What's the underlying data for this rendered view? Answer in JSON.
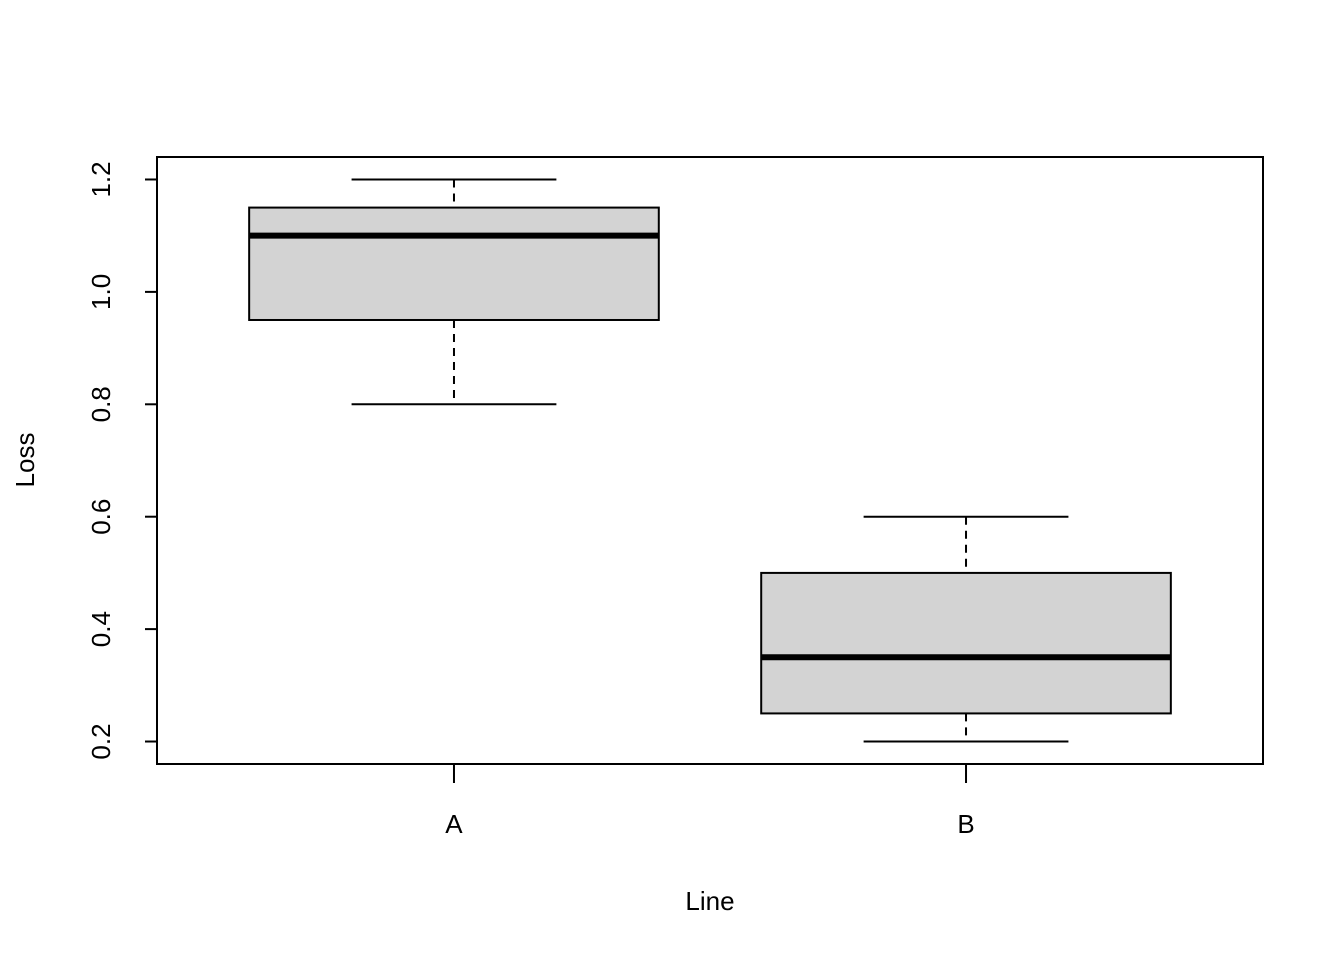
{
  "chart_data": {
    "type": "boxplot",
    "title": "",
    "xlabel": "Line",
    "ylabel": "Loss",
    "categories": [
      "A",
      "B"
    ],
    "boxes": [
      {
        "category": "A",
        "whisker_low": 0.8,
        "q1": 0.95,
        "median": 1.1,
        "q3": 1.15,
        "whisker_high": 1.2
      },
      {
        "category": "B",
        "whisker_low": 0.2,
        "q1": 0.25,
        "median": 0.35,
        "q3": 0.5,
        "whisker_high": 0.6
      }
    ],
    "yticks": [
      "0.2",
      "0.4",
      "0.6",
      "0.8",
      "1.0",
      "1.2"
    ],
    "ylim": [
      0.16,
      1.24
    ],
    "xlim": [
      0.42,
      2.58
    ],
    "grid": false,
    "box_fill": "#d3d3d3",
    "line_color": "#000000"
  }
}
